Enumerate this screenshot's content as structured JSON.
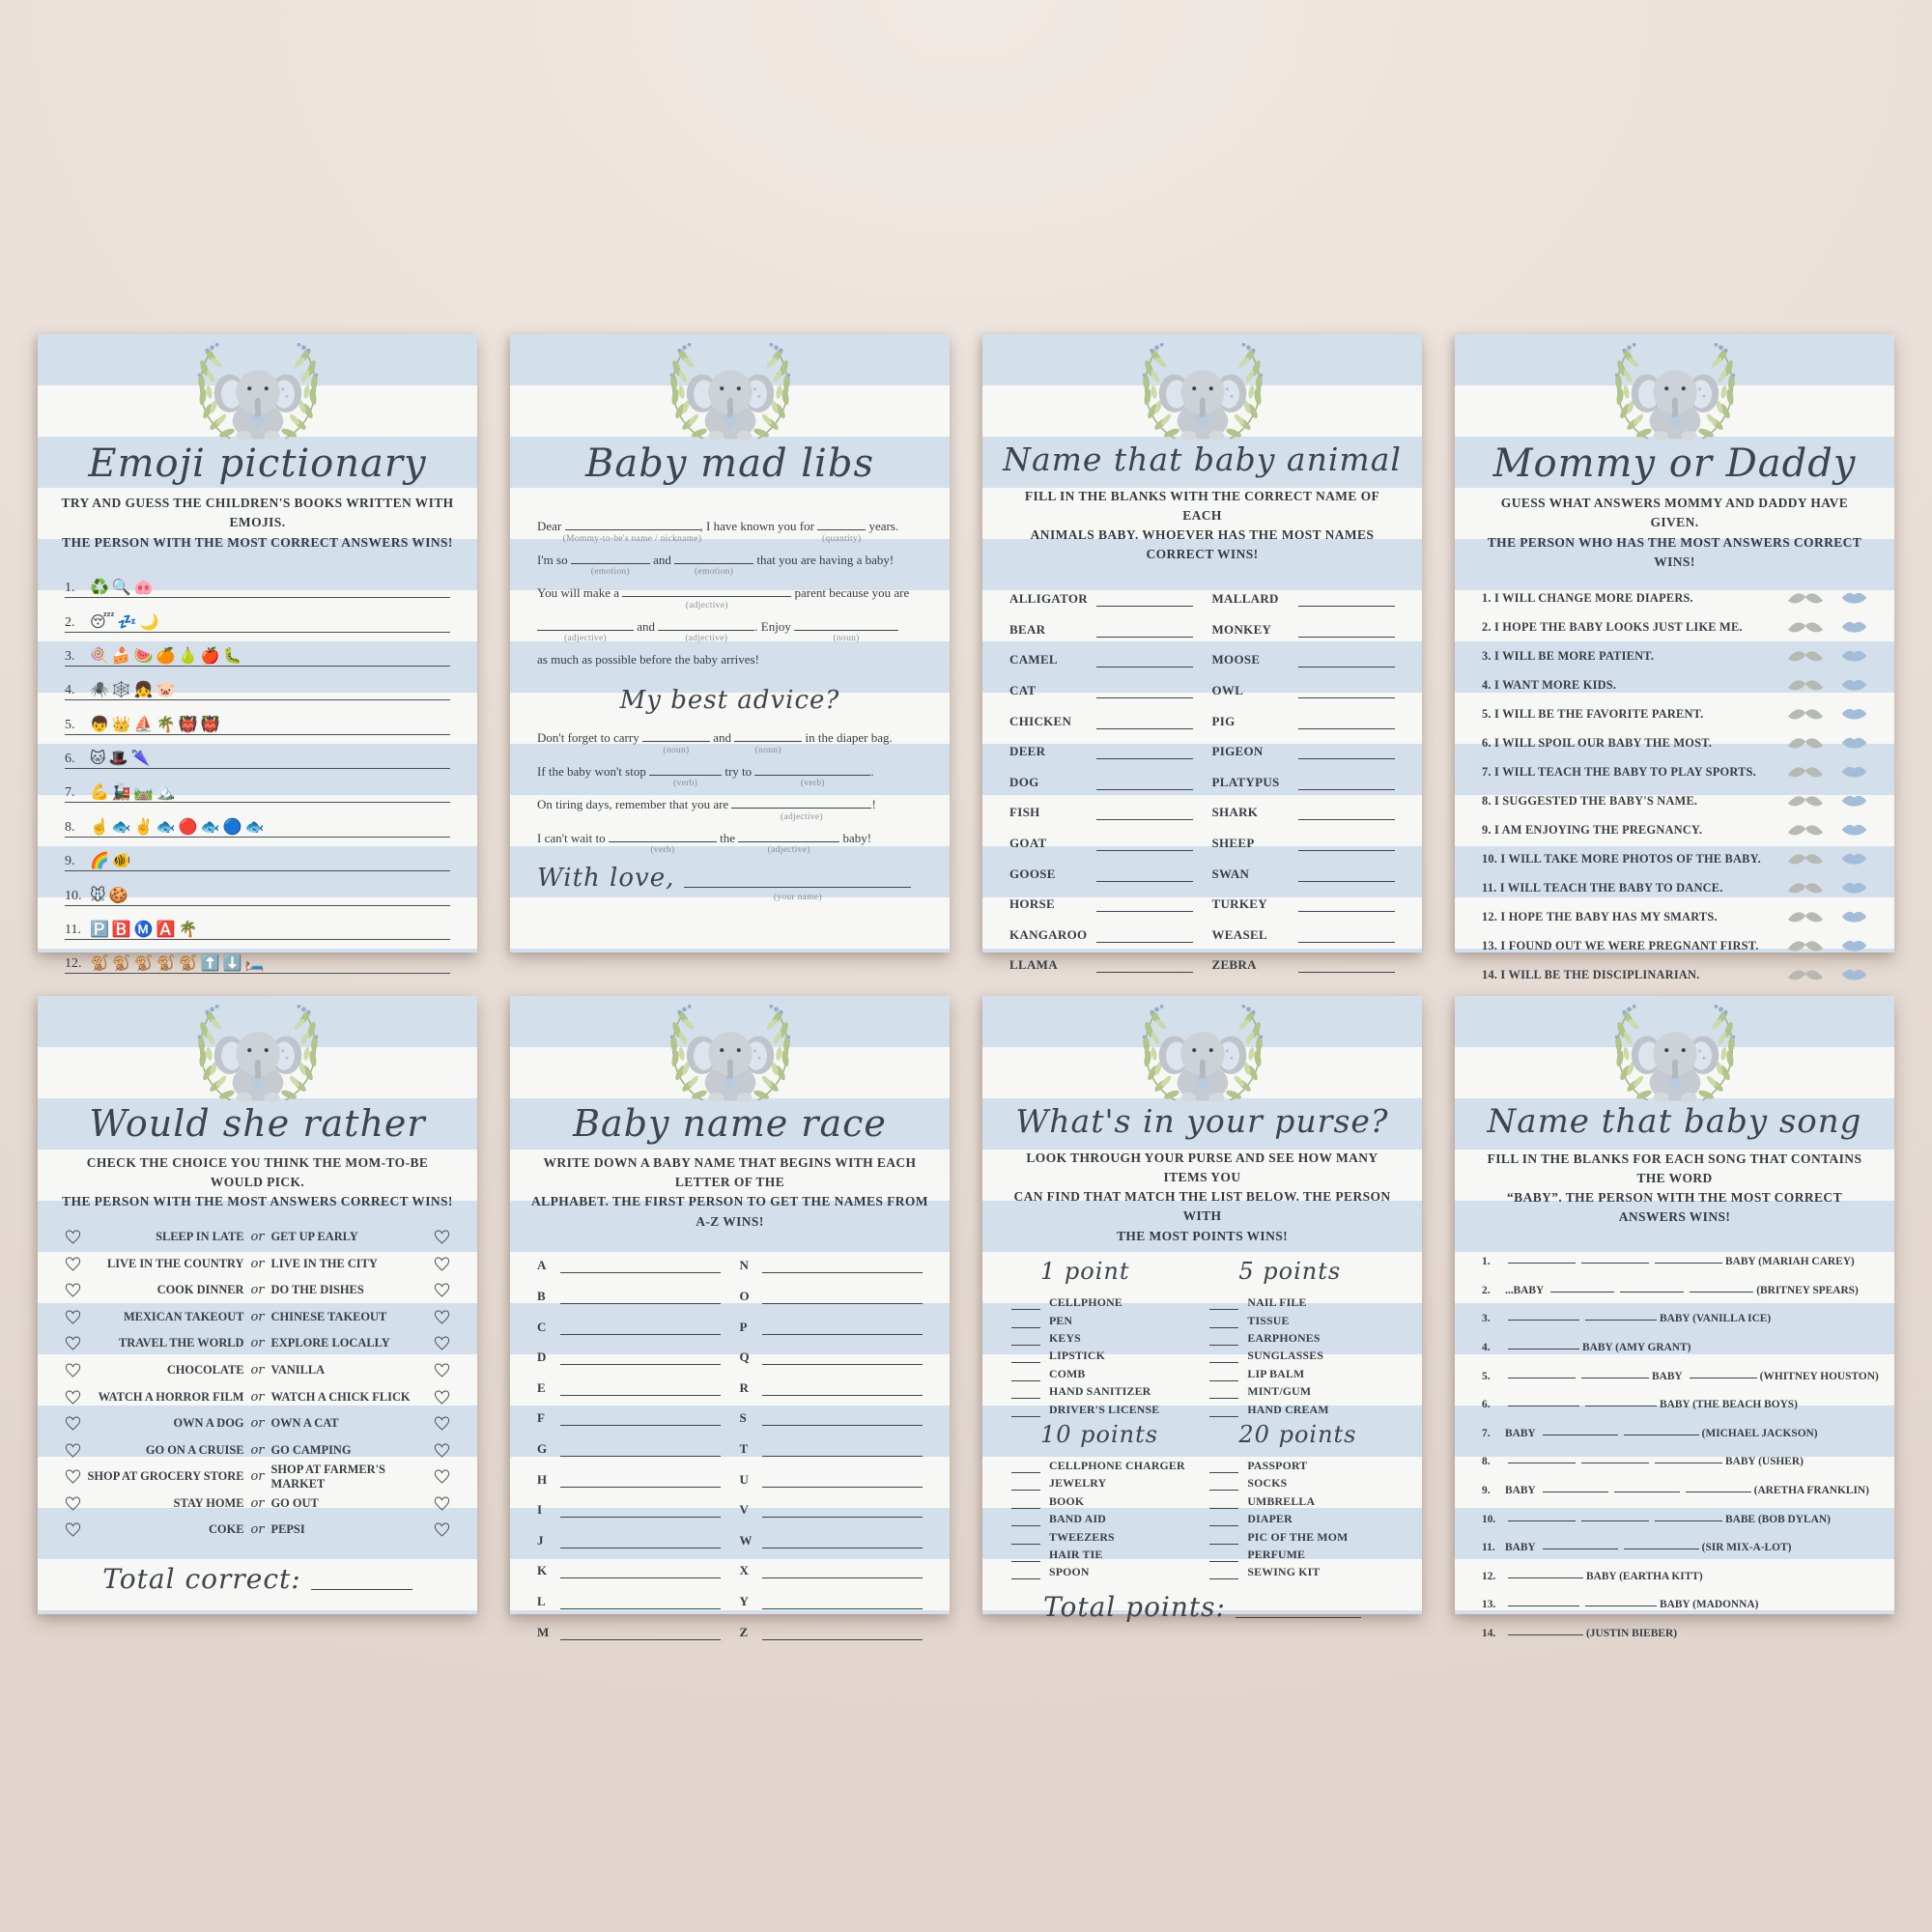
{
  "colors": {
    "backdrop": "#e9dfd8",
    "stripe_blue": "#d3dfeb",
    "stripe_white": "#f7f8f5",
    "text": "#373d44",
    "mustache": "#b6bab2",
    "lips": "#a3bcd8",
    "leaf_green": "#aabf8a",
    "elephant_gray": "#c9ced4"
  },
  "cards": [
    {
      "type": "emoji",
      "title": "Emoji pictionary",
      "subtitle": "TRY AND GUESS THE CHILDREN'S BOOKS WRITTEN WITH EMOJIS.\nTHE PERSON WITH THE MOST CORRECT ANSWERS WINS!",
      "rows": [
        {
          "num": "1.",
          "emojis": "♻️🔍🐽"
        },
        {
          "num": "2.",
          "emojis": "😴💤🌙"
        },
        {
          "num": "3.",
          "emojis": "🍭🍰🍉🍊🍐🍎🐛"
        },
        {
          "num": "4.",
          "emojis": "🕷️🕸️👧🐷"
        },
        {
          "num": "5.",
          "emojis": "👦👑⛵🌴👹👹"
        },
        {
          "num": "6.",
          "emojis": "🐱🎩🌂"
        },
        {
          "num": "7.",
          "emojis": "💪🚂🛤️🏔️"
        },
        {
          "num": "8.",
          "emojis": "☝️🐟✌️🐟🔴🐟🔵🐟"
        },
        {
          "num": "9.",
          "emojis": "🌈🐠"
        },
        {
          "num": "10.",
          "emojis": "🐭🍪"
        },
        {
          "num": "11.",
          "emojis": "🅿️🅱️Ⓜ️🅰️🌴"
        },
        {
          "num": "12.",
          "emojis": "🐒🐒🐒🐒🐒⬆️⬇️🛏️"
        }
      ]
    },
    {
      "type": "madlibs",
      "title": "Baby mad libs",
      "lines": [
        {
          "segs": [
            {
              "t": "Dear "
            },
            {
              "b": 140,
              "label": "(Mommy-to-be's name / nickname)"
            },
            {
              "t": ", I have known you for "
            },
            {
              "b": 50,
              "label": "(quantity)"
            },
            {
              "t": " years."
            }
          ]
        },
        {
          "segs": [
            {
              "t": "I'm so "
            },
            {
              "b": 82,
              "label": "(emotion)"
            },
            {
              "t": " and "
            },
            {
              "b": 82,
              "label": "(emotion)"
            },
            {
              "t": " that you are having a baby!"
            }
          ]
        },
        {
          "segs": [
            {
              "t": "You will make a "
            },
            {
              "b": 175,
              "label": "(adjective)"
            },
            {
              "t": " parent because you are"
            }
          ]
        },
        {
          "segs": [
            {
              "b": 100,
              "label": "(adjective)"
            },
            {
              "t": " and "
            },
            {
              "b": 100,
              "label": "(adjective)"
            },
            {
              "t": ". Enjoy "
            },
            {
              "b": 108,
              "label": "(noun)"
            }
          ]
        },
        {
          "segs": [
            {
              "t": "as much as possible before the baby arrives!"
            }
          ]
        }
      ],
      "advice_heading": "My best advice?",
      "advice_lines": [
        {
          "segs": [
            {
              "t": "Don't forget to carry "
            },
            {
              "b": 70,
              "label": "(noun)"
            },
            {
              "t": " and "
            },
            {
              "b": 70,
              "label": "(noun)"
            },
            {
              "t": " in the diaper bag."
            }
          ]
        },
        {
          "segs": [
            {
              "t": "If the baby won't stop "
            },
            {
              "b": 75,
              "label": "(verb)"
            },
            {
              "t": " try to "
            },
            {
              "b": 120,
              "label": "(verb)"
            },
            {
              "t": "."
            }
          ]
        },
        {
          "segs": [
            {
              "t": "On tiring days, remember that you are "
            },
            {
              "b": 145,
              "label": "(adjective)"
            },
            {
              "t": "!"
            }
          ]
        },
        {
          "segs": [
            {
              "t": "I can't wait to "
            },
            {
              "b": 112,
              "label": "(verb)"
            },
            {
              "t": " the "
            },
            {
              "b": 105,
              "label": "(adjective)"
            },
            {
              "t": " baby!"
            }
          ]
        }
      ],
      "signoff": "With love,",
      "signoff_blank": 235,
      "signoff_label": "(your name)"
    },
    {
      "type": "animals",
      "title": "Name that baby animal",
      "subtitle": "FILL IN THE BLANKS WITH THE CORRECT NAME OF EACH\nANIMALS BABY. WHOEVER HAS THE MOST NAMES CORRECT WINS!",
      "left": [
        "ALLIGATOR",
        "BEAR",
        "CAMEL",
        "CAT",
        "CHICKEN",
        "DEER",
        "DOG",
        "FISH",
        "GOAT",
        "GOOSE",
        "HORSE",
        "KANGAROO",
        "LLAMA"
      ],
      "right": [
        "MALLARD",
        "MONKEY",
        "MOOSE",
        "OWL",
        "PIG",
        "PIGEON",
        "PLATYPUS",
        "SHARK",
        "SHEEP",
        "SWAN",
        "TURKEY",
        "WEASEL",
        "ZEBRA"
      ]
    },
    {
      "type": "mommydaddy",
      "title": "Mommy or Daddy",
      "subtitle": "GUESS WHAT ANSWERS MOMMY AND DADDY HAVE GIVEN.\nTHE PERSON WHO HAS THE MOST ANSWERS CORRECT WINS!",
      "items": [
        {
          "num": "1.",
          "text": "I WILL CHANGE MORE DIAPERS."
        },
        {
          "num": "2.",
          "text": "I HOPE THE BABY LOOKS JUST LIKE ME."
        },
        {
          "num": "3.",
          "text": "I WILL BE MORE PATIENT."
        },
        {
          "num": "4.",
          "text": "I WANT MORE KIDS."
        },
        {
          "num": "5.",
          "text": "I WILL BE THE FAVORITE PARENT."
        },
        {
          "num": "6.",
          "text": "I WILL SPOIL OUR BABY THE MOST."
        },
        {
          "num": "7.",
          "text": "I WILL TEACH THE BABY TO PLAY SPORTS."
        },
        {
          "num": "8.",
          "text": "I SUGGESTED THE BABY'S NAME."
        },
        {
          "num": "9.",
          "text": "I AM ENJOYING THE PREGNANCY."
        },
        {
          "num": "10.",
          "text": "I WILL TAKE MORE PHOTOS OF THE BABY."
        },
        {
          "num": "11.",
          "text": "I WILL TEACH THE BABY TO DANCE."
        },
        {
          "num": "12.",
          "text": "I HOPE THE BABY HAS MY SMARTS."
        },
        {
          "num": "13.",
          "text": "I FOUND OUT WE WERE PREGNANT FIRST."
        },
        {
          "num": "14.",
          "text": "I WILL BE THE DISCIPLINARIAN."
        }
      ]
    },
    {
      "type": "wouldrather",
      "title": "Would she rather",
      "subtitle": "CHECK THE CHOICE YOU THINK THE MOM-TO-BE WOULD PICK.\nTHE PERSON WITH THE MOST ANSWERS CORRECT WINS!",
      "or_word": "or",
      "pairs": [
        [
          "SLEEP IN LATE",
          "GET UP EARLY"
        ],
        [
          "LIVE IN THE COUNTRY",
          "LIVE IN THE CITY"
        ],
        [
          "COOK DINNER",
          "DO THE DISHES"
        ],
        [
          "MEXICAN TAKEOUT",
          "CHINESE TAKEOUT"
        ],
        [
          "TRAVEL THE WORLD",
          "EXPLORE LOCALLY"
        ],
        [
          "CHOCOLATE",
          "VANILLA"
        ],
        [
          "WATCH A HORROR FILM",
          "WATCH A CHICK FLICK"
        ],
        [
          "OWN A DOG",
          "OWN A CAT"
        ],
        [
          "GO ON A CRUISE",
          "GO CAMPING"
        ],
        [
          "SHOP AT GROCERY STORE",
          "SHOP AT FARMER'S MARKET"
        ],
        [
          "STAY HOME",
          "GO OUT"
        ],
        [
          "COKE",
          "PEPSI"
        ]
      ],
      "footer_label": "Total correct:"
    },
    {
      "type": "namerace",
      "title": "Baby name race",
      "subtitle": "WRITE DOWN A BABY NAME THAT BEGINS WITH EACH LETTER OF THE\nALPHABET. THE FIRST PERSON TO GET THE NAMES FROM A-Z WINS!",
      "left": [
        "A",
        "B",
        "C",
        "D",
        "E",
        "F",
        "G",
        "H",
        "I",
        "J",
        "K",
        "L",
        "M"
      ],
      "right": [
        "N",
        "O",
        "P",
        "Q",
        "R",
        "S",
        "T",
        "U",
        "V",
        "W",
        "X",
        "Y",
        "Z"
      ]
    },
    {
      "type": "purse",
      "title": "What's in your purse?",
      "subtitle": "LOOK THROUGH YOUR PURSE AND SEE HOW MANY ITEMS YOU\nCAN FIND THAT MATCH THE LIST BELOW. THE PERSON WITH\nTHE MOST POINTS WINS!",
      "sections": [
        {
          "heading": "1 point",
          "items": [
            "CELLPHONE",
            "PEN",
            "KEYS",
            "LIPSTICK",
            "COMB",
            "HAND SANITIZER",
            "DRIVER'S LICENSE"
          ]
        },
        {
          "heading": "5 points",
          "items": [
            "NAIL FILE",
            "TISSUE",
            "EARPHONES",
            "SUNGLASSES",
            "LIP BALM",
            "MINT/GUM",
            "HAND CREAM"
          ]
        },
        {
          "heading": "10 points",
          "items": [
            "CELLPHONE CHARGER",
            "JEWELRY",
            "BOOK",
            "BAND AID",
            "TWEEZERS",
            "HAIR TIE",
            "SPOON"
          ]
        },
        {
          "heading": "20 points",
          "items": [
            "PASSPORT",
            "SOCKS",
            "UMBRELLA",
            "DIAPER",
            "PIC OF THE MOM",
            "PERFUME",
            "SEWING KIT"
          ]
        }
      ],
      "footer_label": "Total points:"
    },
    {
      "type": "song",
      "title": "Name that baby song",
      "subtitle": "FILL IN THE BLANKS FOR EACH SONG THAT CONTAINS THE WORD\n“BABY”. THE PERSON WITH THE MOST CORRECT ANSWERS WINS!",
      "rows": [
        {
          "num": "1.",
          "segs": [
            {
              "b": 70
            },
            {
              "b": 70
            },
            {
              "b": 70
            },
            {
              "t": "BABY (MARIAH CAREY)"
            }
          ]
        },
        {
          "num": "2.",
          "segs": [
            {
              "t": "...BABY"
            },
            {
              "b": 66
            },
            {
              "b": 66
            },
            {
              "b": 66
            },
            {
              "t": "(BRITNEY SPEARS)"
            }
          ]
        },
        {
          "num": "3.",
          "segs": [
            {
              "b": 74
            },
            {
              "b": 74
            },
            {
              "t": "BABY (VANILLA ICE)"
            }
          ]
        },
        {
          "num": "4.",
          "segs": [
            {
              "b": 74
            },
            {
              "t": "BABY (AMY GRANT)"
            }
          ]
        },
        {
          "num": "5.",
          "segs": [
            {
              "b": 70
            },
            {
              "b": 70
            },
            {
              "t": "BABY"
            },
            {
              "b": 70
            },
            {
              "t": "(WHITNEY HOUSTON)"
            }
          ]
        },
        {
          "num": "6.",
          "segs": [
            {
              "b": 74
            },
            {
              "b": 74
            },
            {
              "t": "BABY (THE BEACH BOYS)"
            }
          ]
        },
        {
          "num": "7.",
          "segs": [
            {
              "t": "BABY"
            },
            {
              "b": 78
            },
            {
              "b": 78
            },
            {
              "t": "(MICHAEL JACKSON)"
            }
          ]
        },
        {
          "num": "8.",
          "segs": [
            {
              "b": 70
            },
            {
              "b": 70
            },
            {
              "b": 70
            },
            {
              "t": "BABY (USHER)"
            }
          ]
        },
        {
          "num": "9.",
          "segs": [
            {
              "t": "BABY"
            },
            {
              "b": 68
            },
            {
              "b": 68
            },
            {
              "b": 68
            },
            {
              "t": "(ARETHA FRANKLIN)"
            }
          ]
        },
        {
          "num": "10.",
          "segs": [
            {
              "b": 70
            },
            {
              "b": 70
            },
            {
              "b": 70
            },
            {
              "t": "BABE (BOB DYLAN)"
            }
          ]
        },
        {
          "num": "11.",
          "segs": [
            {
              "t": "BABY"
            },
            {
              "b": 78
            },
            {
              "b": 78
            },
            {
              "t": "(SIR MIX-A-LOT)"
            }
          ]
        },
        {
          "num": "12.",
          "segs": [
            {
              "b": 78
            },
            {
              "t": "BABY (EARTHA KITT)"
            }
          ]
        },
        {
          "num": "13.",
          "segs": [
            {
              "b": 74
            },
            {
              "b": 74
            },
            {
              "t": "BABY (MADONNA)"
            }
          ]
        },
        {
          "num": "14.",
          "segs": [
            {
              "b": 78
            },
            {
              "t": "(JUSTIN BIEBER)"
            }
          ]
        }
      ]
    }
  ]
}
